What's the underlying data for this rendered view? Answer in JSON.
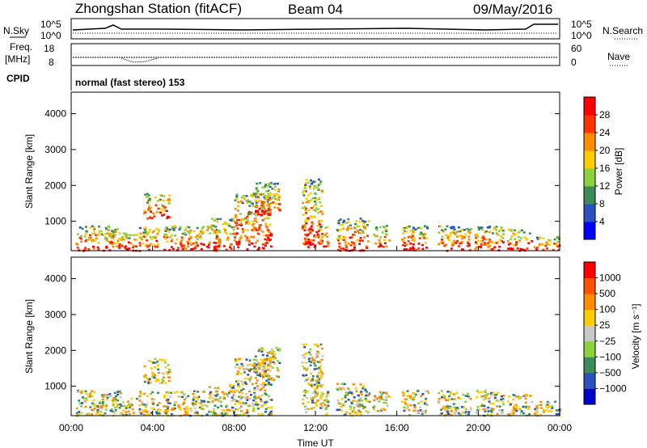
{
  "header": {
    "station": "Zhongshan Station (fitACF)",
    "beam": "Beam 04",
    "date": "09/May/2016"
  },
  "status_panels": {
    "nsky_label": "N.Sky",
    "nsearch_label": "N.Search",
    "nsky_tick_top": "10^5",
    "nsky_tick_bottom": "10^0",
    "freq_label": "Freq.",
    "freq_unit": "[MHz]",
    "freq_tick_top": "18",
    "freq_tick_bottom": "8",
    "nave_label": "Nave",
    "nave_tick_top": "60",
    "nave_tick_bottom": "0",
    "cpid_label": "CPID",
    "cpid_value": "normal (fast stereo) 153"
  },
  "chart_data": [
    {
      "type": "heatmap",
      "name": "power",
      "ylabel": "Slant Range [km]",
      "yticks": [
        "1000",
        "2000",
        "3000",
        "4000"
      ],
      "ylim": [
        180,
        4600
      ],
      "colorbar_label": "Power [dB]",
      "colorbar_ticks": [
        "4",
        "8",
        "12",
        "16",
        "20",
        "24",
        "28"
      ],
      "colorbar_range": [
        0,
        30
      ],
      "colors": [
        "#0000ff",
        "#2a52be",
        "#3c8c5a",
        "#8cd23c",
        "#ffcc00",
        "#ff8c00",
        "#ff3300",
        "#ff0000"
      ],
      "xticks": [
        "00:00",
        "04:00",
        "08:00",
        "12:00",
        "16:00",
        "20:00",
        "00:00"
      ],
      "xlim_hours": [
        0,
        24
      ]
    },
    {
      "type": "heatmap",
      "name": "velocity",
      "ylabel": "Slant Range [km]",
      "yticks": [
        "1000",
        "2000",
        "3000",
        "4000"
      ],
      "ylim": [
        180,
        4600
      ],
      "colorbar_label": "Velocity [m s⁻¹]",
      "colorbar_ticks": [
        "1000",
        "500",
        "100",
        "25",
        "−25",
        "−100",
        "−500",
        "−1000"
      ],
      "colors": [
        "#0000cc",
        "#2a52be",
        "#3c8c5a",
        "#8cd23c",
        "#c8c8c8",
        "#ffcc00",
        "#ff8c00",
        "#ff5000",
        "#ff0000"
      ],
      "xticks": [
        "00:00",
        "04:00",
        "08:00",
        "12:00",
        "16:00",
        "20:00",
        "00:00"
      ],
      "xlim_hours": [
        0,
        24
      ],
      "xlabel": "Time UT"
    }
  ]
}
